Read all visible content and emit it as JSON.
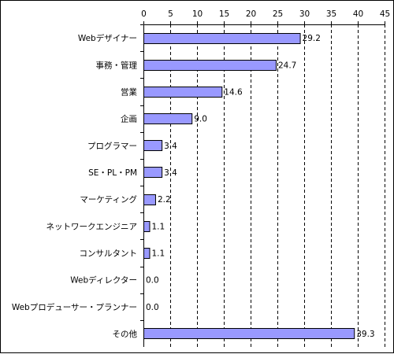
{
  "chart_data": {
    "type": "bar",
    "orientation": "horizontal",
    "categories": [
      "Webデザイナー",
      "事務・管理",
      "営業",
      "企画",
      "プログラマー",
      "SE・PL・PM",
      "マーケティング",
      "ネットワークエンジニア",
      "コンサルタント",
      "Webディレクター",
      "Webプロデューサー・プランナー",
      "その他"
    ],
    "values": [
      29.2,
      24.7,
      14.6,
      9.0,
      3.4,
      3.4,
      2.2,
      1.1,
      1.1,
      0.0,
      0.0,
      39.3
    ],
    "value_labels": [
      "29.2",
      "24.7",
      "14.6",
      "9.0",
      "3.4",
      "3.4",
      "2.2",
      "1.1",
      "1.1",
      "0.0",
      "0.0",
      "39.3"
    ],
    "xlim": [
      0,
      45
    ],
    "xticks": [
      0,
      5,
      10,
      15,
      20,
      25,
      30,
      35,
      40,
      45
    ],
    "x_axis_position": "top",
    "grid": "vertical dashed",
    "legend": "none",
    "colors": {
      "bar_fill": "#9999ff",
      "bar_stroke": "#000000",
      "grid": "#000000",
      "axis": "#000000"
    }
  }
}
